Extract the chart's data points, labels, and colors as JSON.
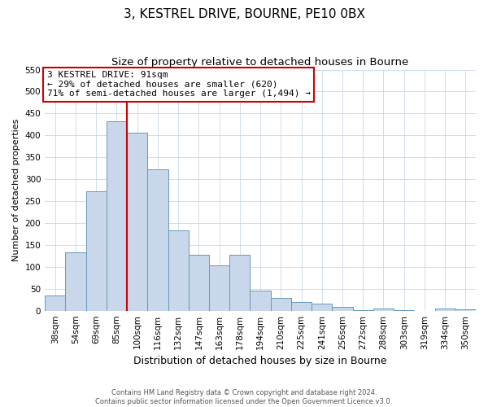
{
  "title": "3, KESTREL DRIVE, BOURNE, PE10 0BX",
  "subtitle": "Size of property relative to detached houses in Bourne",
  "xlabel": "Distribution of detached houses by size in Bourne",
  "ylabel": "Number of detached properties",
  "bar_labels": [
    "38sqm",
    "54sqm",
    "69sqm",
    "85sqm",
    "100sqm",
    "116sqm",
    "132sqm",
    "147sqm",
    "163sqm",
    "178sqm",
    "194sqm",
    "210sqm",
    "225sqm",
    "241sqm",
    "256sqm",
    "272sqm",
    "288sqm",
    "303sqm",
    "319sqm",
    "334sqm",
    "350sqm"
  ],
  "bar_values": [
    35,
    133,
    272,
    432,
    406,
    322,
    183,
    128,
    103,
    128,
    46,
    30,
    20,
    16,
    9,
    1,
    5,
    1,
    0,
    5,
    4
  ],
  "bar_color": "#c8d8ea",
  "bar_edge_color": "#6699bb",
  "ylim": [
    0,
    550
  ],
  "yticks": [
    0,
    50,
    100,
    150,
    200,
    250,
    300,
    350,
    400,
    450,
    500,
    550
  ],
  "property_line_x": 3.5,
  "property_line_color": "#cc0000",
  "annotation_text": "3 KESTREL DRIVE: 91sqm\n← 29% of detached houses are smaller (620)\n71% of semi-detached houses are larger (1,494) →",
  "annotation_box_color": "#ffffff",
  "annotation_box_edge": "#cc0000",
  "footer_line1": "Contains HM Land Registry data © Crown copyright and database right 2024.",
  "footer_line2": "Contains public sector information licensed under the Open Government Licence v3.0.",
  "bg_color": "#ffffff",
  "grid_color": "#c8d8e8",
  "title_fontsize": 11,
  "subtitle_fontsize": 9.5,
  "tick_fontsize": 7.5,
  "ylabel_fontsize": 8,
  "xlabel_fontsize": 9
}
